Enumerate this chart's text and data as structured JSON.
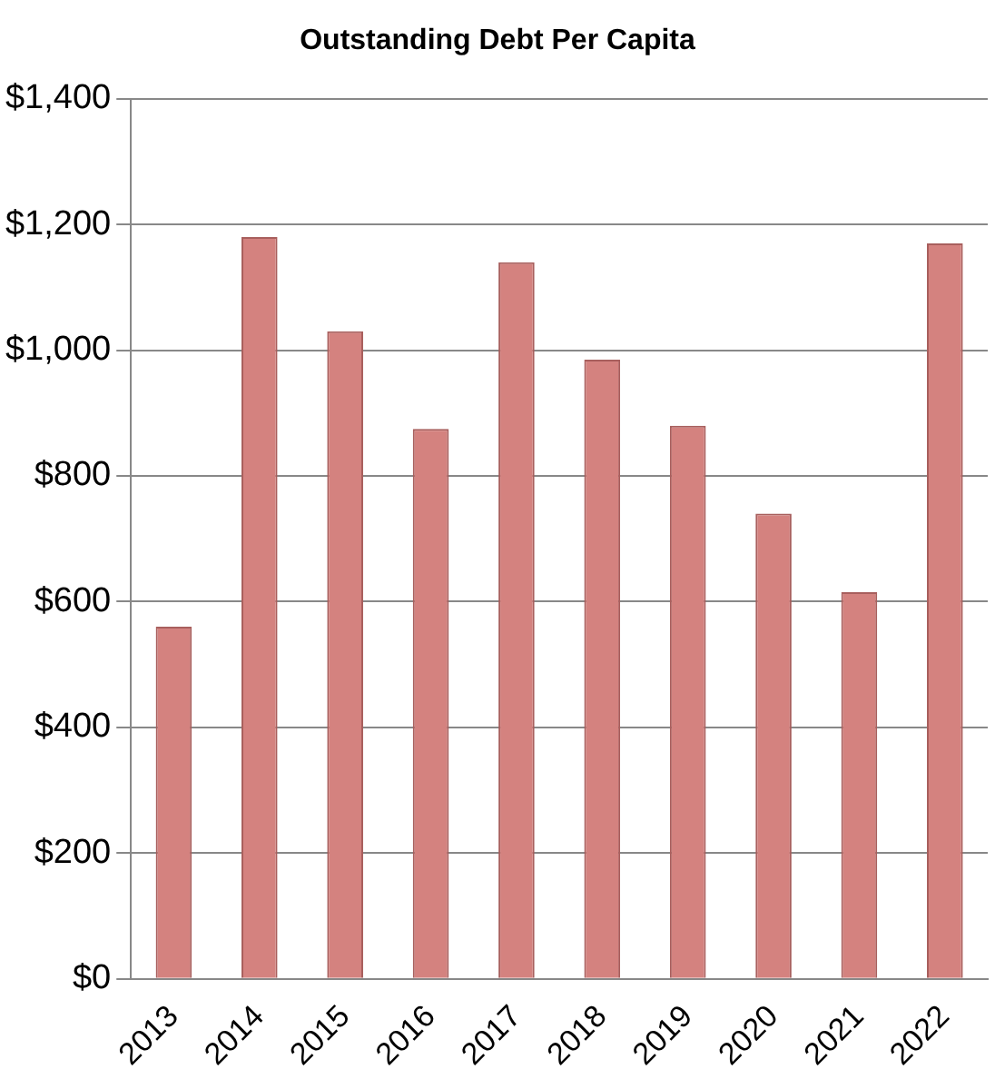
{
  "chart_data": {
    "type": "bar",
    "title": "Outstanding Debt Per Capita",
    "categories": [
      "2013",
      "2014",
      "2015",
      "2016",
      "2017",
      "2018",
      "2019",
      "2020",
      "2021",
      "2022"
    ],
    "values": [
      560,
      1180,
      1030,
      875,
      1140,
      985,
      880,
      740,
      615,
      1170
    ],
    "color": "#d4827f",
    "ylim": [
      0,
      1400
    ],
    "yticks": [
      {
        "value": 0,
        "label": "$0"
      },
      {
        "value": 200,
        "label": "$200"
      },
      {
        "value": 400,
        "label": "$400"
      },
      {
        "value": 600,
        "label": "$600"
      },
      {
        "value": 800,
        "label": "$800"
      },
      {
        "value": 1000,
        "label": "$1,000"
      },
      {
        "value": 1200,
        "label": "$1,200"
      },
      {
        "value": 1400,
        "label": "$1,400"
      }
    ],
    "grid": "y",
    "legend": false
  }
}
